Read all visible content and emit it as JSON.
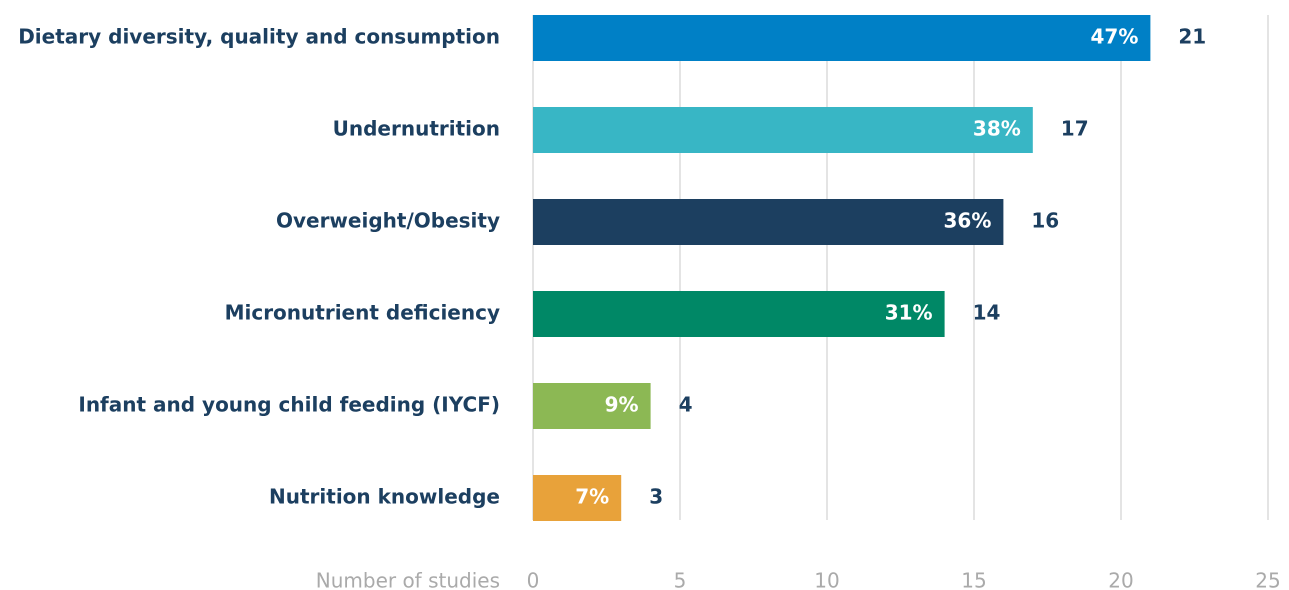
{
  "chart_data": {
    "type": "bar",
    "orientation": "horizontal",
    "categories": [
      "Dietary diversity, quality and consumption",
      "Undernutrition",
      "Overweight/Obesity",
      "Micronutrient deficiency",
      "Infant and young child feeding (IYCF)",
      "Nutrition knowledge"
    ],
    "values": [
      21,
      17,
      16,
      14,
      4,
      3
    ],
    "percent_labels": [
      "47%",
      "38%",
      "36%",
      "31%",
      "9%",
      "7%"
    ],
    "colors": [
      "#0080c6",
      "#38b6c5",
      "#1c3f60",
      "#008866",
      "#8cb854",
      "#e8a23a"
    ],
    "x_label": "Number of studies",
    "xlim": [
      0,
      25
    ],
    "xticks": [
      0,
      5,
      10,
      15,
      20,
      25
    ],
    "grid": true
  }
}
